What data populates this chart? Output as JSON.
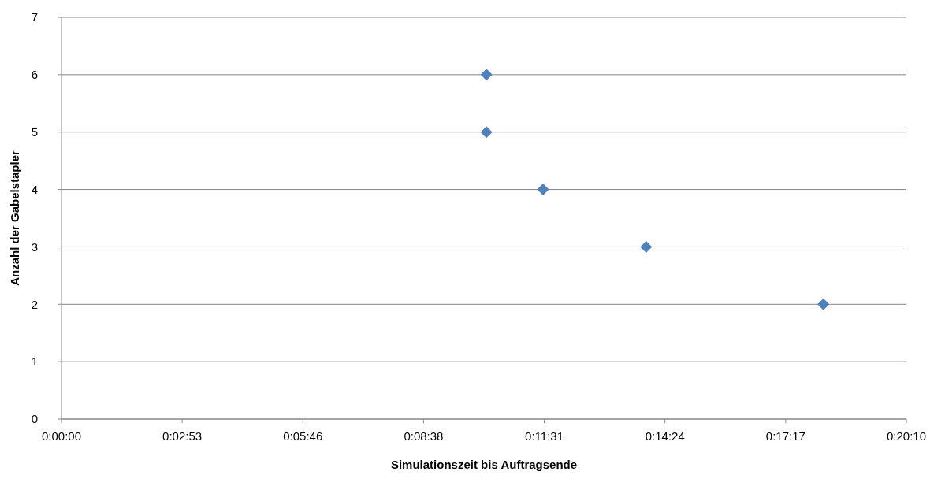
{
  "chart_data": {
    "type": "scatter",
    "xlabel": "Simulationszeit bis Auftragsende",
    "ylabel": "Anzahl der Gabelstapler",
    "series": [
      {
        "color": "#4f81bd",
        "x": [
          0.169,
          0.169,
          0.1915,
          0.2325,
          0.303
        ],
        "values": [
          6,
          5,
          4,
          3,
          2
        ]
      }
    ],
    "xlim": [
      0,
      0.336
    ],
    "xticks": [
      {
        "value": 0,
        "label": "0:00:00"
      },
      {
        "value": 0.048,
        "label": "0:02:53"
      },
      {
        "value": 0.096,
        "label": "0:05:46"
      },
      {
        "value": 0.144,
        "label": "0:08:38"
      },
      {
        "value": 0.192,
        "label": "0:11:31"
      },
      {
        "value": 0.24,
        "label": "0:14:24"
      },
      {
        "value": 0.288,
        "label": "0:17:17"
      },
      {
        "value": 0.336,
        "label": "0:20:10"
      }
    ],
    "ylim": [
      0,
      7
    ],
    "yticks": [
      0,
      1,
      2,
      3,
      4,
      5,
      6,
      7
    ],
    "grid": "y",
    "marker": "diamond"
  }
}
